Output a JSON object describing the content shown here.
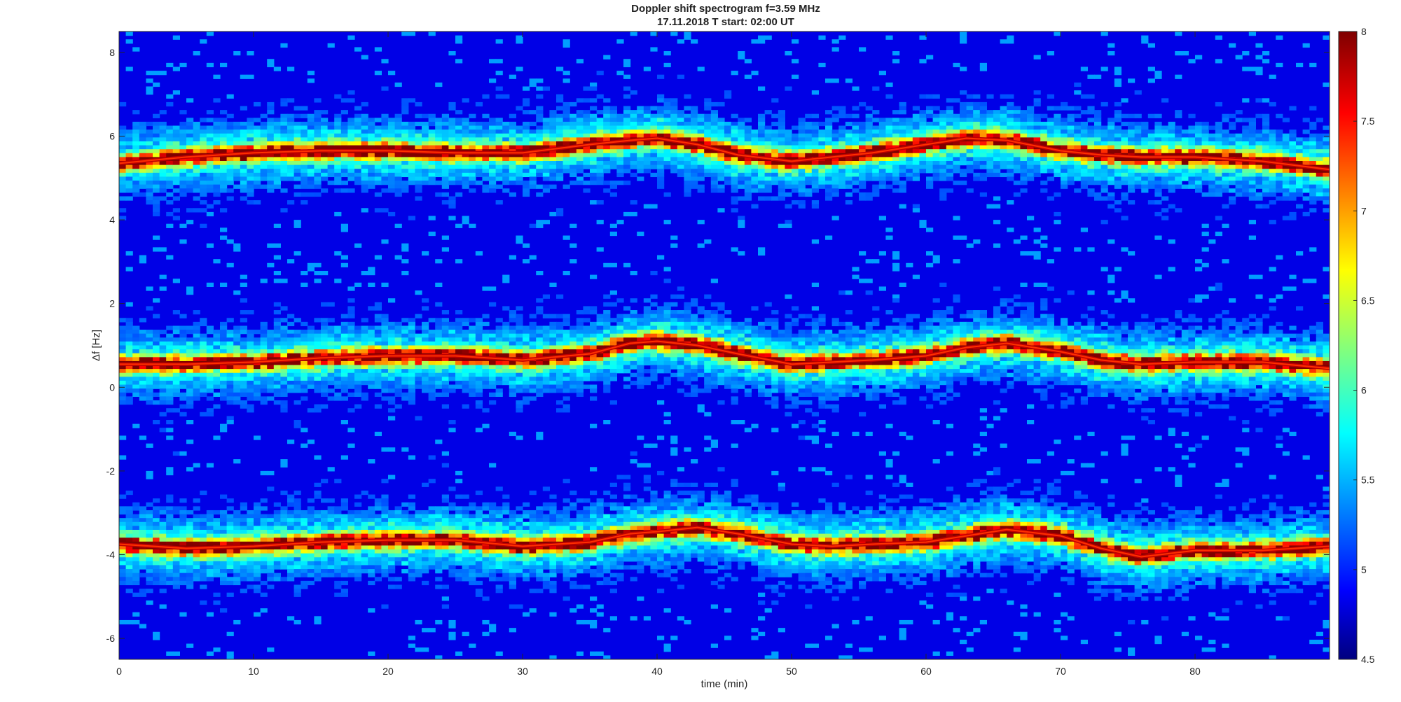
{
  "chart_data": {
    "type": "heatmap",
    "title": "Doppler shift spectrogram f=3.59 MHz",
    "subtitle": "17.11.2018   T start: 02:00 UT",
    "xlabel": "time (min)",
    "ylabel": "Δf [Hz]",
    "xlim": [
      0,
      90
    ],
    "ylim": [
      -6.5,
      8.5
    ],
    "xticks": [
      0,
      10,
      20,
      30,
      40,
      50,
      60,
      70,
      80
    ],
    "yticks": [
      -6,
      -4,
      -2,
      0,
      2,
      4,
      6,
      8
    ],
    "colorbar": {
      "colormap": "jet",
      "clim": [
        4.5,
        8
      ],
      "ticks": [
        4.5,
        5,
        5.5,
        6,
        6.5,
        7,
        7.5,
        8
      ]
    },
    "traces": [
      {
        "time": [
          0,
          5,
          10,
          15,
          20,
          25,
          30,
          35,
          38,
          40,
          43,
          46,
          50,
          53,
          56,
          60,
          63,
          66,
          70,
          73,
          76,
          80,
          85,
          90
        ],
        "freq": [
          5.35,
          5.5,
          5.6,
          5.65,
          5.65,
          5.6,
          5.6,
          5.8,
          5.9,
          5.95,
          5.8,
          5.55,
          5.4,
          5.5,
          5.6,
          5.8,
          5.95,
          5.9,
          5.65,
          5.55,
          5.5,
          5.5,
          5.4,
          5.2
        ]
      },
      {
        "time": [
          0,
          5,
          10,
          15,
          20,
          25,
          30,
          35,
          38,
          40,
          43,
          46,
          50,
          53,
          56,
          60,
          63,
          66,
          70,
          73,
          76,
          80,
          85,
          90
        ],
        "freq": [
          0.55,
          0.55,
          0.6,
          0.7,
          0.75,
          0.75,
          0.65,
          0.8,
          1.05,
          1.1,
          1.0,
          0.8,
          0.55,
          0.6,
          0.65,
          0.75,
          0.95,
          1.05,
          0.85,
          0.65,
          0.55,
          0.6,
          0.6,
          0.45
        ]
      },
      {
        "time": [
          0,
          5,
          10,
          15,
          20,
          25,
          30,
          35,
          38,
          40,
          43,
          46,
          50,
          53,
          56,
          60,
          63,
          66,
          70,
          73,
          76,
          80,
          85,
          90
        ],
        "freq": [
          -3.75,
          -3.85,
          -3.8,
          -3.7,
          -3.65,
          -3.65,
          -3.8,
          -3.7,
          -3.5,
          -3.45,
          -3.35,
          -3.5,
          -3.75,
          -3.8,
          -3.75,
          -3.7,
          -3.55,
          -3.4,
          -3.55,
          -3.85,
          -4.05,
          -3.9,
          -3.9,
          -3.8
        ]
      }
    ]
  }
}
